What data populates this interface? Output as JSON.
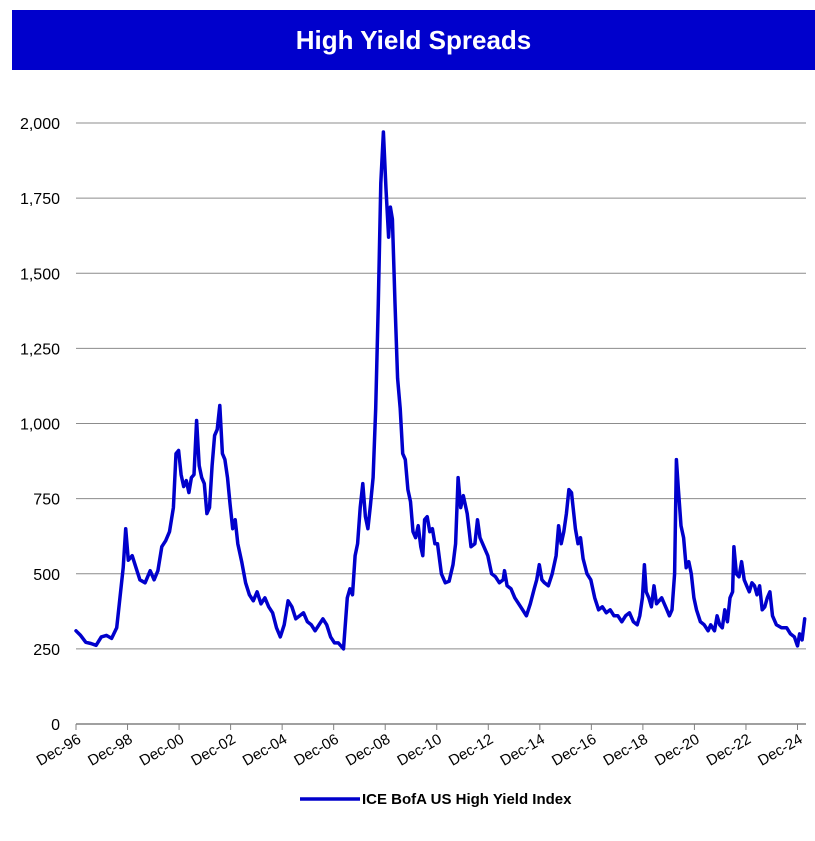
{
  "colors": {
    "title_bg": "#0000cc",
    "line": "#0000cc",
    "grid": "#8c8c8c",
    "axis": "#808080"
  },
  "chart_data": {
    "type": "line",
    "title": "High Yield Spreads",
    "xlabel": "",
    "ylabel": "",
    "ylim": [
      0,
      2000
    ],
    "yticks": [
      {
        "value": 0,
        "label": "0"
      },
      {
        "value": 250,
        "label": "250"
      },
      {
        "value": 500,
        "label": "500"
      },
      {
        "value": 750,
        "label": "750"
      },
      {
        "value": 1000,
        "label": "1,000"
      },
      {
        "value": 1250,
        "label": "1,250"
      },
      {
        "value": 1500,
        "label": "1,500"
      },
      {
        "value": 1750,
        "label": "1,750"
      },
      {
        "value": 2000,
        "label": "2,000"
      }
    ],
    "xlim": [
      1996.92,
      2025.25
    ],
    "xticks": [
      {
        "value": 1996.92,
        "label": "Dec-96"
      },
      {
        "value": 1998.92,
        "label": "Dec-98"
      },
      {
        "value": 2000.92,
        "label": "Dec-00"
      },
      {
        "value": 2002.92,
        "label": "Dec-02"
      },
      {
        "value": 2004.92,
        "label": "Dec-04"
      },
      {
        "value": 2006.92,
        "label": "Dec-06"
      },
      {
        "value": 2008.92,
        "label": "Dec-08"
      },
      {
        "value": 2010.92,
        "label": "Dec-10"
      },
      {
        "value": 2012.92,
        "label": "Dec-12"
      },
      {
        "value": 2014.92,
        "label": "Dec-14"
      },
      {
        "value": 2016.92,
        "label": "Dec-16"
      },
      {
        "value": 2018.92,
        "label": "Dec-18"
      },
      {
        "value": 2020.92,
        "label": "Dec-20"
      },
      {
        "value": 2022.92,
        "label": "Dec-22"
      },
      {
        "value": 2024.92,
        "label": "Dec-24"
      }
    ],
    "grid": "horizontal",
    "legend": "bottom",
    "series": [
      {
        "name": "ICE BofA US High Yield Index",
        "points": [
          [
            1996.92,
            310
          ],
          [
            1997.1,
            295
          ],
          [
            1997.3,
            272
          ],
          [
            1997.5,
            268
          ],
          [
            1997.7,
            262
          ],
          [
            1997.9,
            290
          ],
          [
            1998.1,
            295
          ],
          [
            1998.3,
            285
          ],
          [
            1998.5,
            320
          ],
          [
            1998.6,
            400
          ],
          [
            1998.75,
            520
          ],
          [
            1998.85,
            650
          ],
          [
            1998.95,
            545
          ],
          [
            1999.1,
            560
          ],
          [
            1999.25,
            520
          ],
          [
            1999.4,
            480
          ],
          [
            1999.6,
            470
          ],
          [
            1999.8,
            510
          ],
          [
            1999.95,
            480
          ],
          [
            2000.1,
            510
          ],
          [
            2000.25,
            590
          ],
          [
            2000.4,
            610
          ],
          [
            2000.55,
            640
          ],
          [
            2000.7,
            720
          ],
          [
            2000.8,
            900
          ],
          [
            2000.9,
            910
          ],
          [
            2001.0,
            830
          ],
          [
            2001.1,
            790
          ],
          [
            2001.2,
            810
          ],
          [
            2001.3,
            770
          ],
          [
            2001.4,
            820
          ],
          [
            2001.5,
            830
          ],
          [
            2001.6,
            1010
          ],
          [
            2001.7,
            860
          ],
          [
            2001.8,
            820
          ],
          [
            2001.9,
            800
          ],
          [
            2002.0,
            700
          ],
          [
            2002.1,
            720
          ],
          [
            2002.2,
            860
          ],
          [
            2002.3,
            960
          ],
          [
            2002.4,
            980
          ],
          [
            2002.5,
            1060
          ],
          [
            2002.6,
            900
          ],
          [
            2002.7,
            880
          ],
          [
            2002.8,
            820
          ],
          [
            2002.9,
            730
          ],
          [
            2003.0,
            650
          ],
          [
            2003.1,
            680
          ],
          [
            2003.2,
            600
          ],
          [
            2003.35,
            540
          ],
          [
            2003.5,
            470
          ],
          [
            2003.65,
            430
          ],
          [
            2003.8,
            410
          ],
          [
            2003.95,
            440
          ],
          [
            2004.1,
            400
          ],
          [
            2004.25,
            420
          ],
          [
            2004.4,
            390
          ],
          [
            2004.55,
            370
          ],
          [
            2004.7,
            320
          ],
          [
            2004.85,
            290
          ],
          [
            2005.0,
            330
          ],
          [
            2005.15,
            410
          ],
          [
            2005.3,
            390
          ],
          [
            2005.45,
            350
          ],
          [
            2005.6,
            360
          ],
          [
            2005.75,
            370
          ],
          [
            2005.9,
            340
          ],
          [
            2006.05,
            330
          ],
          [
            2006.2,
            310
          ],
          [
            2006.35,
            330
          ],
          [
            2006.5,
            350
          ],
          [
            2006.65,
            330
          ],
          [
            2006.8,
            290
          ],
          [
            2006.95,
            270
          ],
          [
            2007.1,
            270
          ],
          [
            2007.3,
            250
          ],
          [
            2007.45,
            420
          ],
          [
            2007.55,
            450
          ],
          [
            2007.65,
            430
          ],
          [
            2007.75,
            560
          ],
          [
            2007.85,
            600
          ],
          [
            2007.95,
            720
          ],
          [
            2008.05,
            800
          ],
          [
            2008.15,
            690
          ],
          [
            2008.25,
            650
          ],
          [
            2008.35,
            730
          ],
          [
            2008.45,
            820
          ],
          [
            2008.55,
            1050
          ],
          [
            2008.65,
            1400
          ],
          [
            2008.75,
            1800
          ],
          [
            2008.85,
            1970
          ],
          [
            2008.95,
            1780
          ],
          [
            2009.05,
            1620
          ],
          [
            2009.12,
            1720
          ],
          [
            2009.2,
            1680
          ],
          [
            2009.3,
            1400
          ],
          [
            2009.4,
            1150
          ],
          [
            2009.5,
            1050
          ],
          [
            2009.6,
            900
          ],
          [
            2009.7,
            880
          ],
          [
            2009.8,
            780
          ],
          [
            2009.9,
            740
          ],
          [
            2010.0,
            640
          ],
          [
            2010.1,
            620
          ],
          [
            2010.2,
            660
          ],
          [
            2010.3,
            590
          ],
          [
            2010.38,
            560
          ],
          [
            2010.45,
            680
          ],
          [
            2010.55,
            690
          ],
          [
            2010.65,
            640
          ],
          [
            2010.75,
            650
          ],
          [
            2010.85,
            600
          ],
          [
            2010.95,
            600
          ],
          [
            2011.1,
            500
          ],
          [
            2011.25,
            470
          ],
          [
            2011.4,
            475
          ],
          [
            2011.55,
            530
          ],
          [
            2011.65,
            600
          ],
          [
            2011.75,
            820
          ],
          [
            2011.85,
            720
          ],
          [
            2011.95,
            760
          ],
          [
            2012.1,
            700
          ],
          [
            2012.25,
            590
          ],
          [
            2012.4,
            600
          ],
          [
            2012.5,
            680
          ],
          [
            2012.6,
            620
          ],
          [
            2012.75,
            590
          ],
          [
            2012.9,
            560
          ],
          [
            2013.05,
            500
          ],
          [
            2013.2,
            490
          ],
          [
            2013.35,
            470
          ],
          [
            2013.5,
            480
          ],
          [
            2013.55,
            510
          ],
          [
            2013.65,
            460
          ],
          [
            2013.8,
            450
          ],
          [
            2013.95,
            420
          ],
          [
            2014.1,
            400
          ],
          [
            2014.25,
            380
          ],
          [
            2014.4,
            360
          ],
          [
            2014.55,
            400
          ],
          [
            2014.7,
            450
          ],
          [
            2014.8,
            480
          ],
          [
            2014.9,
            530
          ],
          [
            2015.0,
            480
          ],
          [
            2015.1,
            470
          ],
          [
            2015.25,
            460
          ],
          [
            2015.4,
            500
          ],
          [
            2015.55,
            560
          ],
          [
            2015.65,
            660
          ],
          [
            2015.75,
            600
          ],
          [
            2015.85,
            640
          ],
          [
            2015.95,
            700
          ],
          [
            2016.05,
            780
          ],
          [
            2016.15,
            770
          ],
          [
            2016.3,
            650
          ],
          [
            2016.4,
            600
          ],
          [
            2016.5,
            620
          ],
          [
            2016.6,
            550
          ],
          [
            2016.75,
            500
          ],
          [
            2016.9,
            480
          ],
          [
            2017.05,
            420
          ],
          [
            2017.2,
            380
          ],
          [
            2017.35,
            390
          ],
          [
            2017.5,
            370
          ],
          [
            2017.65,
            380
          ],
          [
            2017.8,
            360
          ],
          [
            2017.95,
            360
          ],
          [
            2018.1,
            340
          ],
          [
            2018.25,
            360
          ],
          [
            2018.4,
            370
          ],
          [
            2018.55,
            340
          ],
          [
            2018.7,
            330
          ],
          [
            2018.8,
            360
          ],
          [
            2018.9,
            420
          ],
          [
            2018.98,
            530
          ],
          [
            2019.05,
            440
          ],
          [
            2019.15,
            420
          ],
          [
            2019.25,
            390
          ],
          [
            2019.35,
            460
          ],
          [
            2019.45,
            400
          ],
          [
            2019.55,
            410
          ],
          [
            2019.65,
            420
          ],
          [
            2019.75,
            400
          ],
          [
            2019.85,
            380
          ],
          [
            2019.95,
            360
          ],
          [
            2020.05,
            380
          ],
          [
            2020.15,
            500
          ],
          [
            2020.22,
            880
          ],
          [
            2020.3,
            780
          ],
          [
            2020.4,
            660
          ],
          [
            2020.5,
            620
          ],
          [
            2020.6,
            520
          ],
          [
            2020.7,
            540
          ],
          [
            2020.8,
            500
          ],
          [
            2020.9,
            420
          ],
          [
            2021.0,
            380
          ],
          [
            2021.15,
            340
          ],
          [
            2021.3,
            330
          ],
          [
            2021.45,
            310
          ],
          [
            2021.55,
            330
          ],
          [
            2021.7,
            310
          ],
          [
            2021.8,
            360
          ],
          [
            2021.9,
            330
          ],
          [
            2022.0,
            320
          ],
          [
            2022.1,
            380
          ],
          [
            2022.2,
            340
          ],
          [
            2022.3,
            420
          ],
          [
            2022.4,
            440
          ],
          [
            2022.45,
            590
          ],
          [
            2022.55,
            500
          ],
          [
            2022.65,
            490
          ],
          [
            2022.75,
            540
          ],
          [
            2022.85,
            480
          ],
          [
            2022.95,
            460
          ],
          [
            2023.05,
            440
          ],
          [
            2023.15,
            470
          ],
          [
            2023.25,
            460
          ],
          [
            2023.35,
            430
          ],
          [
            2023.45,
            460
          ],
          [
            2023.55,
            380
          ],
          [
            2023.65,
            390
          ],
          [
            2023.75,
            420
          ],
          [
            2023.85,
            440
          ],
          [
            2023.95,
            360
          ],
          [
            2024.1,
            330
          ],
          [
            2024.3,
            320
          ],
          [
            2024.5,
            320
          ],
          [
            2024.65,
            300
          ],
          [
            2024.8,
            290
          ],
          [
            2024.92,
            260
          ],
          [
            2025.0,
            300
          ],
          [
            2025.1,
            280
          ],
          [
            2025.2,
            350
          ]
        ]
      }
    ]
  }
}
